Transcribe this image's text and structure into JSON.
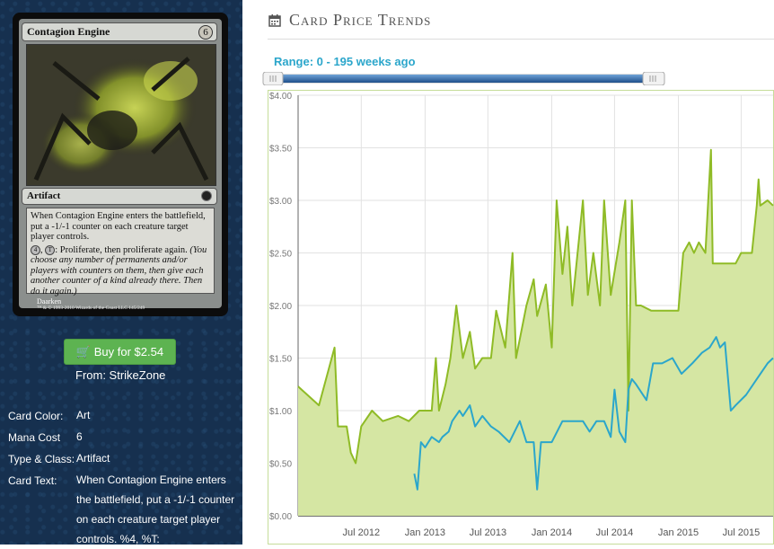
{
  "card": {
    "name": "Contagion Engine",
    "mana_cost": "6",
    "type_line": "Artifact",
    "rules_text_1": "When Contagion Engine enters the battlefield, put a -1/-1 counter on each creature target player controls.",
    "ability_cost_1": "4",
    "ability_cost_2": "T",
    "ability_text": ": Proliferate, then proliferate again.",
    "reminder_text": "(You choose any number of permanents and/or players with counters on them, then give each another counter of a kind already there. Then do it again.)",
    "artist": "Daarken",
    "copyright": "™ & © 1993-2010 Wizards of the Coast LLC 145/249"
  },
  "buy": {
    "label": "Buy for $2.54",
    "from": "From: StrikeZone"
  },
  "attributes": [
    {
      "label": "Card Color:",
      "value": "Art"
    },
    {
      "label": "Mana Cost",
      "value": "6"
    },
    {
      "label": "Type & Class:",
      "value": "Artifact"
    },
    {
      "label": "Card Text:",
      "value": "When Contagion Engine enters the battlefield, put a -1/-1 counter on each creature target player controls. %4, %T:"
    }
  ],
  "panel": {
    "title": "Card Price Trends",
    "range_label": "Range: 0 - 195 weeks ago",
    "range_low": 0,
    "range_high": 195
  },
  "colors": {
    "retail": "#8fbb26",
    "retail_fill": "#d5e6a3",
    "buylist": "#2ba6cb",
    "button": "#5db351",
    "page_bg": "#16304f"
  },
  "chart_data": {
    "type": "line",
    "ylim": [
      0,
      4
    ],
    "yticks": [
      "$0.00",
      "$0.50",
      "$1.00",
      "$1.50",
      "$2.00",
      "$2.50",
      "$3.00",
      "$3.50",
      "$4.00"
    ],
    "xticks": [
      "Jul 2012",
      "Jan 2013",
      "Jul 2013",
      "Jan 2014",
      "Jul 2014",
      "Jan 2015",
      "Jul 2015"
    ],
    "grid": true,
    "series": [
      {
        "style": "area",
        "points": [
          [
            "2012-01-01",
            1.23
          ],
          [
            "2012-03-01",
            1.05
          ],
          [
            "2012-04-15",
            1.6
          ],
          [
            "2012-04-25",
            0.85
          ],
          [
            "2012-05-20",
            0.85
          ],
          [
            "2012-06-01",
            0.6
          ],
          [
            "2012-06-15",
            0.5
          ],
          [
            "2012-07-01",
            0.85
          ],
          [
            "2012-08-01",
            1.0
          ],
          [
            "2012-09-01",
            0.9
          ],
          [
            "2012-10-15",
            0.95
          ],
          [
            "2012-11-15",
            0.9
          ],
          [
            "2012-12-15",
            1.0
          ],
          [
            "2013-01-20",
            1.0
          ],
          [
            "2013-02-01",
            1.5
          ],
          [
            "2013-02-10",
            1.0
          ],
          [
            "2013-03-01",
            1.25
          ],
          [
            "2013-03-15",
            1.5
          ],
          [
            "2013-04-01",
            2.0
          ],
          [
            "2013-04-20",
            1.5
          ],
          [
            "2013-05-10",
            1.75
          ],
          [
            "2013-05-25",
            1.4
          ],
          [
            "2013-06-15",
            1.5
          ],
          [
            "2013-07-10",
            1.5
          ],
          [
            "2013-07-25",
            1.95
          ],
          [
            "2013-08-20",
            1.6
          ],
          [
            "2013-09-10",
            2.5
          ],
          [
            "2013-09-20",
            1.5
          ],
          [
            "2013-10-20",
            2.0
          ],
          [
            "2013-11-10",
            2.25
          ],
          [
            "2013-11-20",
            1.9
          ],
          [
            "2013-12-15",
            2.2
          ],
          [
            "2014-01-01",
            1.6
          ],
          [
            "2014-01-15",
            3.0
          ],
          [
            "2014-02-01",
            2.3
          ],
          [
            "2014-02-15",
            2.75
          ],
          [
            "2014-03-01",
            2.0
          ],
          [
            "2014-04-01",
            3.0
          ],
          [
            "2014-04-15",
            2.1
          ],
          [
            "2014-05-01",
            2.5
          ],
          [
            "2014-05-20",
            2.0
          ],
          [
            "2014-06-01",
            3.0
          ],
          [
            "2014-06-20",
            2.1
          ],
          [
            "2014-07-15",
            2.6
          ],
          [
            "2014-08-01",
            3.0
          ],
          [
            "2014-08-10",
            1.0
          ],
          [
            "2014-08-20",
            3.0
          ],
          [
            "2014-09-01",
            2.0
          ],
          [
            "2014-09-15",
            2.0
          ],
          [
            "2014-10-15",
            1.95
          ],
          [
            "2014-11-15",
            1.95
          ],
          [
            "2014-12-15",
            1.95
          ],
          [
            "2015-01-01",
            1.95
          ],
          [
            "2015-01-15",
            2.5
          ],
          [
            "2015-02-01",
            2.6
          ],
          [
            "2015-02-15",
            2.5
          ],
          [
            "2015-03-01",
            2.6
          ],
          [
            "2015-03-20",
            2.5
          ],
          [
            "2015-04-05",
            3.48
          ],
          [
            "2015-04-10",
            2.4
          ],
          [
            "2015-05-15",
            2.4
          ],
          [
            "2015-06-15",
            2.4
          ],
          [
            "2015-07-01",
            2.5
          ],
          [
            "2015-08-01",
            2.5
          ],
          [
            "2015-08-15",
            2.95
          ],
          [
            "2015-08-20",
            3.2
          ],
          [
            "2015-08-25",
            2.95
          ],
          [
            "2015-09-15",
            3.0
          ],
          [
            "2015-10-01",
            2.95
          ]
        ]
      },
      {
        "style": "line",
        "points": [
          [
            "2012-12-01",
            0.4
          ],
          [
            "2012-12-10",
            0.25
          ],
          [
            "2012-12-20",
            0.7
          ],
          [
            "2013-01-01",
            0.65
          ],
          [
            "2013-01-20",
            0.75
          ],
          [
            "2013-02-10",
            0.7
          ],
          [
            "2013-02-20",
            0.75
          ],
          [
            "2013-03-10",
            0.8
          ],
          [
            "2013-03-20",
            0.9
          ],
          [
            "2013-04-10",
            1.0
          ],
          [
            "2013-04-20",
            0.95
          ],
          [
            "2013-05-10",
            1.05
          ],
          [
            "2013-05-25",
            0.85
          ],
          [
            "2013-06-15",
            0.95
          ],
          [
            "2013-07-10",
            0.85
          ],
          [
            "2013-08-01",
            0.8
          ],
          [
            "2013-09-01",
            0.7
          ],
          [
            "2013-10-01",
            0.9
          ],
          [
            "2013-10-20",
            0.7
          ],
          [
            "2013-11-10",
            0.7
          ],
          [
            "2013-11-20",
            0.25
          ],
          [
            "2013-12-01",
            0.7
          ],
          [
            "2014-01-01",
            0.7
          ],
          [
            "2014-02-01",
            0.9
          ],
          [
            "2014-03-01",
            0.9
          ],
          [
            "2014-04-01",
            0.9
          ],
          [
            "2014-04-20",
            0.8
          ],
          [
            "2014-05-10",
            0.9
          ],
          [
            "2014-06-01",
            0.9
          ],
          [
            "2014-06-20",
            0.75
          ],
          [
            "2014-07-01",
            1.2
          ],
          [
            "2014-07-15",
            0.8
          ],
          [
            "2014-08-01",
            0.7
          ],
          [
            "2014-08-10",
            1.2
          ],
          [
            "2014-08-20",
            1.3
          ],
          [
            "2014-09-01",
            1.25
          ],
          [
            "2014-10-01",
            1.1
          ],
          [
            "2014-10-20",
            1.45
          ],
          [
            "2014-11-15",
            1.45
          ],
          [
            "2014-12-15",
            1.5
          ],
          [
            "2015-01-10",
            1.35
          ],
          [
            "2015-02-10",
            1.45
          ],
          [
            "2015-03-10",
            1.55
          ],
          [
            "2015-04-01",
            1.6
          ],
          [
            "2015-04-20",
            1.7
          ],
          [
            "2015-05-01",
            1.6
          ],
          [
            "2015-05-15",
            1.65
          ],
          [
            "2015-06-01",
            1.0
          ],
          [
            "2015-06-15",
            1.05
          ],
          [
            "2015-07-15",
            1.15
          ],
          [
            "2015-08-15",
            1.3
          ],
          [
            "2015-09-15",
            1.45
          ],
          [
            "2015-10-01",
            1.5
          ]
        ]
      }
    ]
  }
}
